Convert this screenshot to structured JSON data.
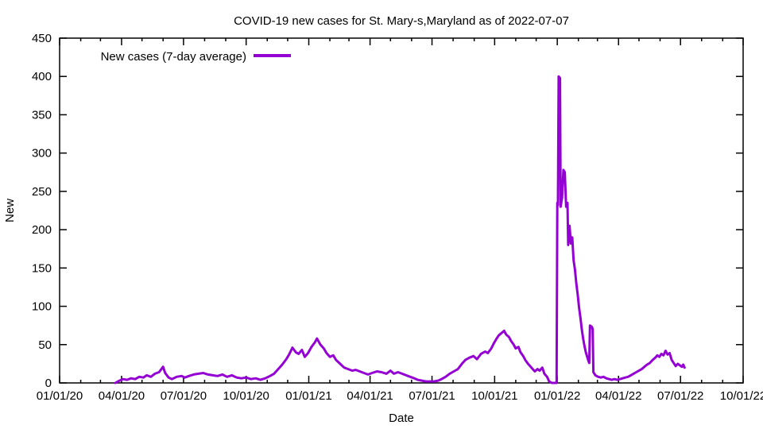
{
  "chart_data": {
    "type": "line",
    "title": "COVID-19 new cases for St. Mary-s,Maryland as of 2022-07-07",
    "xlabel": "Date",
    "ylabel": "New",
    "legend_label": "New cases (7-day average)",
    "legend_position": "top-left",
    "grid": false,
    "line_color": "#9400D3",
    "axis_color": "#000000",
    "background_color": "#ffffff",
    "ylim": [
      0,
      450
    ],
    "y_ticks": [
      0,
      50,
      100,
      150,
      200,
      250,
      300,
      350,
      400,
      450
    ],
    "x_range": [
      "2020-01-01",
      "2022-10-01"
    ],
    "x_ticks": [
      {
        "date": "2020-01-01",
        "label": "01/01/20"
      },
      {
        "date": "2020-04-01",
        "label": "04/01/20"
      },
      {
        "date": "2020-07-01",
        "label": "07/01/20"
      },
      {
        "date": "2020-10-01",
        "label": "10/01/20"
      },
      {
        "date": "2021-01-01",
        "label": "01/01/21"
      },
      {
        "date": "2021-04-01",
        "label": "04/01/21"
      },
      {
        "date": "2021-07-01",
        "label": "07/01/21"
      },
      {
        "date": "2021-10-01",
        "label": "10/01/21"
      },
      {
        "date": "2022-01-01",
        "label": "01/01/22"
      },
      {
        "date": "2022-04-01",
        "label": "04/01/22"
      },
      {
        "date": "2022-07-01",
        "label": "07/01/22"
      },
      {
        "date": "2022-10-01",
        "label": "10/01/22"
      }
    ],
    "series": [
      {
        "name": "New cases (7-day average)",
        "color": "#9400D3",
        "points": [
          [
            "2020-03-23",
            0
          ],
          [
            "2020-03-29",
            3
          ],
          [
            "2020-04-03",
            5
          ],
          [
            "2020-04-09",
            4
          ],
          [
            "2020-04-15",
            6
          ],
          [
            "2020-04-21",
            5
          ],
          [
            "2020-04-27",
            8
          ],
          [
            "2020-05-03",
            7
          ],
          [
            "2020-05-08",
            10
          ],
          [
            "2020-05-14",
            8
          ],
          [
            "2020-05-20",
            12
          ],
          [
            "2020-05-26",
            14
          ],
          [
            "2020-06-01",
            21
          ],
          [
            "2020-06-04",
            13
          ],
          [
            "2020-06-09",
            7
          ],
          [
            "2020-06-14",
            5
          ],
          [
            "2020-06-21",
            8
          ],
          [
            "2020-06-28",
            9
          ],
          [
            "2020-07-03",
            7
          ],
          [
            "2020-07-09",
            9
          ],
          [
            "2020-07-16",
            11
          ],
          [
            "2020-07-23",
            12
          ],
          [
            "2020-07-30",
            13
          ],
          [
            "2020-08-06",
            11
          ],
          [
            "2020-08-13",
            10
          ],
          [
            "2020-08-20",
            9
          ],
          [
            "2020-08-27",
            11
          ],
          [
            "2020-09-03",
            8
          ],
          [
            "2020-09-10",
            10
          ],
          [
            "2020-09-17",
            7
          ],
          [
            "2020-09-24",
            6
          ],
          [
            "2020-10-01",
            7
          ],
          [
            "2020-10-08",
            5
          ],
          [
            "2020-10-15",
            6
          ],
          [
            "2020-10-22",
            4
          ],
          [
            "2020-10-29",
            6
          ],
          [
            "2020-11-05",
            9
          ],
          [
            "2020-11-11",
            12
          ],
          [
            "2020-11-17",
            18
          ],
          [
            "2020-11-23",
            24
          ],
          [
            "2020-11-29",
            31
          ],
          [
            "2020-12-03",
            37
          ],
          [
            "2020-12-08",
            46
          ],
          [
            "2020-12-13",
            40
          ],
          [
            "2020-12-17",
            38
          ],
          [
            "2020-12-22",
            43
          ],
          [
            "2020-12-26",
            34
          ],
          [
            "2020-12-31",
            39
          ],
          [
            "2021-01-05",
            47
          ],
          [
            "2021-01-10",
            53
          ],
          [
            "2021-01-13",
            58
          ],
          [
            "2021-01-18",
            50
          ],
          [
            "2021-01-23",
            45
          ],
          [
            "2021-01-27",
            39
          ],
          [
            "2021-02-01",
            34
          ],
          [
            "2021-02-06",
            36
          ],
          [
            "2021-02-10",
            30
          ],
          [
            "2021-02-16",
            25
          ],
          [
            "2021-02-22",
            20
          ],
          [
            "2021-02-28",
            18
          ],
          [
            "2021-03-06",
            16
          ],
          [
            "2021-03-11",
            17
          ],
          [
            "2021-03-17",
            15
          ],
          [
            "2021-03-23",
            13
          ],
          [
            "2021-03-29",
            11
          ],
          [
            "2021-04-04",
            13
          ],
          [
            "2021-04-11",
            15
          ],
          [
            "2021-04-18",
            14
          ],
          [
            "2021-04-25",
            12
          ],
          [
            "2021-05-01",
            16
          ],
          [
            "2021-05-06",
            12
          ],
          [
            "2021-05-12",
            14
          ],
          [
            "2021-05-18",
            12
          ],
          [
            "2021-05-24",
            10
          ],
          [
            "2021-05-30",
            8
          ],
          [
            "2021-06-05",
            6
          ],
          [
            "2021-06-10",
            4
          ],
          [
            "2021-06-16",
            3
          ],
          [
            "2021-06-22",
            2
          ],
          [
            "2021-06-28",
            2
          ],
          [
            "2021-07-04",
            2
          ],
          [
            "2021-07-10",
            3
          ],
          [
            "2021-07-15",
            5
          ],
          [
            "2021-07-21",
            8
          ],
          [
            "2021-07-27",
            12
          ],
          [
            "2021-08-02",
            15
          ],
          [
            "2021-08-08",
            18
          ],
          [
            "2021-08-14",
            25
          ],
          [
            "2021-08-19",
            30
          ],
          [
            "2021-08-25",
            33
          ],
          [
            "2021-08-31",
            35
          ],
          [
            "2021-09-05",
            31
          ],
          [
            "2021-09-11",
            38
          ],
          [
            "2021-09-17",
            41
          ],
          [
            "2021-09-21",
            39
          ],
          [
            "2021-09-26",
            45
          ],
          [
            "2021-09-30",
            52
          ],
          [
            "2021-10-04",
            58
          ],
          [
            "2021-10-07",
            62
          ],
          [
            "2021-10-11",
            65
          ],
          [
            "2021-10-15",
            68
          ],
          [
            "2021-10-18",
            63
          ],
          [
            "2021-10-22",
            60
          ],
          [
            "2021-10-25",
            55
          ],
          [
            "2021-10-29",
            50
          ],
          [
            "2021-11-01",
            45
          ],
          [
            "2021-11-05",
            47
          ],
          [
            "2021-11-08",
            40
          ],
          [
            "2021-11-12",
            35
          ],
          [
            "2021-11-15",
            30
          ],
          [
            "2021-11-19",
            25
          ],
          [
            "2021-11-22",
            22
          ],
          [
            "2021-11-26",
            18
          ],
          [
            "2021-11-29",
            15
          ],
          [
            "2021-12-03",
            18
          ],
          [
            "2021-12-06",
            16
          ],
          [
            "2021-12-10",
            20
          ],
          [
            "2021-12-13",
            12
          ],
          [
            "2021-12-17",
            8
          ],
          [
            "2021-12-20",
            2
          ],
          [
            "2021-12-24",
            0
          ],
          [
            "2021-12-31",
            0
          ],
          [
            "2022-01-01",
            235
          ],
          [
            "2022-01-02",
            232
          ],
          [
            "2022-01-03",
            400
          ],
          [
            "2022-01-05",
            398
          ],
          [
            "2022-01-06",
            230
          ],
          [
            "2022-01-08",
            242
          ],
          [
            "2022-01-10",
            278
          ],
          [
            "2022-01-12",
            275
          ],
          [
            "2022-01-14",
            230
          ],
          [
            "2022-01-16",
            235
          ],
          [
            "2022-01-17",
            180
          ],
          [
            "2022-01-19",
            205
          ],
          [
            "2022-01-21",
            182
          ],
          [
            "2022-01-23",
            190
          ],
          [
            "2022-01-25",
            160
          ],
          [
            "2022-01-27",
            148
          ],
          [
            "2022-01-29",
            130
          ],
          [
            "2022-01-31",
            115
          ],
          [
            "2022-02-02",
            98
          ],
          [
            "2022-02-04",
            85
          ],
          [
            "2022-02-06",
            70
          ],
          [
            "2022-02-08",
            58
          ],
          [
            "2022-02-10",
            48
          ],
          [
            "2022-02-12",
            40
          ],
          [
            "2022-02-14",
            34
          ],
          [
            "2022-02-16",
            28
          ],
          [
            "2022-02-17",
            26
          ],
          [
            "2022-02-18",
            75
          ],
          [
            "2022-02-21",
            73
          ],
          [
            "2022-02-22",
            70
          ],
          [
            "2022-02-23",
            14
          ],
          [
            "2022-02-26",
            10
          ],
          [
            "2022-03-02",
            8
          ],
          [
            "2022-03-06",
            7
          ],
          [
            "2022-03-10",
            8
          ],
          [
            "2022-03-14",
            6
          ],
          [
            "2022-03-18",
            5
          ],
          [
            "2022-03-22",
            4
          ],
          [
            "2022-03-26",
            5
          ],
          [
            "2022-03-30",
            4
          ],
          [
            "2022-04-03",
            5
          ],
          [
            "2022-04-07",
            6
          ],
          [
            "2022-04-11",
            7
          ],
          [
            "2022-04-15",
            8
          ],
          [
            "2022-04-19",
            10
          ],
          [
            "2022-04-23",
            12
          ],
          [
            "2022-04-27",
            14
          ],
          [
            "2022-05-01",
            16
          ],
          [
            "2022-05-05",
            18
          ],
          [
            "2022-05-09",
            21
          ],
          [
            "2022-05-13",
            24
          ],
          [
            "2022-05-17",
            26
          ],
          [
            "2022-05-21",
            30
          ],
          [
            "2022-05-25",
            33
          ],
          [
            "2022-05-28",
            36
          ],
          [
            "2022-05-31",
            34
          ],
          [
            "2022-06-03",
            38
          ],
          [
            "2022-06-06",
            36
          ],
          [
            "2022-06-09",
            42
          ],
          [
            "2022-06-12",
            37
          ],
          [
            "2022-06-15",
            39
          ],
          [
            "2022-06-18",
            30
          ],
          [
            "2022-06-21",
            26
          ],
          [
            "2022-06-24",
            22
          ],
          [
            "2022-06-27",
            25
          ],
          [
            "2022-06-30",
            23
          ],
          [
            "2022-07-03",
            21
          ],
          [
            "2022-07-05",
            24
          ],
          [
            "2022-07-07",
            20
          ]
        ]
      }
    ]
  }
}
